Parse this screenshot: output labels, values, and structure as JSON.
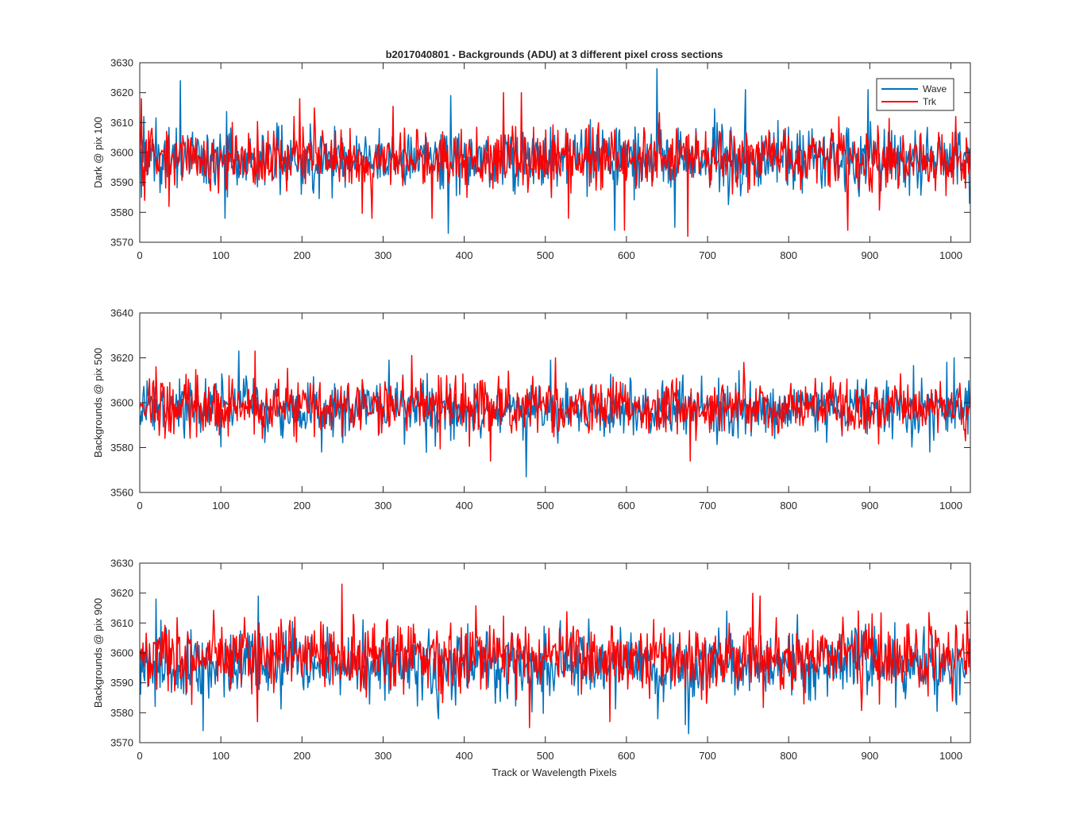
{
  "figure": {
    "background": "#ffffff"
  },
  "colors": {
    "wave": "#0072bd",
    "trk": "#ff0000",
    "axis": "#262626"
  },
  "chart_data": [
    {
      "type": "line",
      "title": "b2017040801 - Backgrounds (ADU) at 3 different pixel cross sections",
      "xlabel": "",
      "ylabel": "Dark @ pix 100",
      "xlim": [
        0,
        1024
      ],
      "ylim": [
        3570,
        3630
      ],
      "xticks": [
        "0",
        "100",
        "200",
        "300",
        "400",
        "500",
        "600",
        "700",
        "800",
        "900",
        "1000"
      ],
      "yticks": [
        "3570",
        "3580",
        "3590",
        "3600",
        "3610",
        "3620",
        "3630"
      ],
      "legend": {
        "position": "top-right",
        "entries": [
          "Wave",
          "Trk"
        ]
      },
      "grid": false,
      "series": [
        {
          "name": "Wave",
          "color": "#0072bd",
          "mean": 3598,
          "spread": 5.2,
          "spikes": [
            [
              2,
              3585
            ],
            [
              5,
              3612
            ],
            [
              50,
              3624
            ],
            [
              105,
              3578
            ],
            [
              380,
              3573
            ],
            [
              383,
              3619
            ],
            [
              555,
              3611
            ],
            [
              585,
              3574
            ],
            [
              637,
              3628
            ],
            [
              659,
              3575
            ],
            [
              711,
              3610
            ],
            [
              746,
              3621
            ],
            [
              897,
              3621
            ],
            [
              1022,
              3583
            ]
          ]
        },
        {
          "name": "Trk",
          "color": "#ff0000",
          "mean": 3598,
          "spread": 5.0,
          "spikes": [
            [
              2,
              3618
            ],
            [
              6,
              3584
            ],
            [
              36,
              3582
            ],
            [
              197,
              3618
            ],
            [
              286,
              3578
            ],
            [
              360,
              3578
            ],
            [
              448,
              3620
            ],
            [
              470,
              3620
            ],
            [
              528,
              3578
            ],
            [
              597,
              3574
            ],
            [
              675,
              3572
            ],
            [
              872,
              3574
            ],
            [
              1005,
              3612
            ]
          ]
        }
      ]
    },
    {
      "type": "line",
      "title": "",
      "xlabel": "",
      "ylabel": "Backgrounds @ pix 500",
      "xlim": [
        0,
        1024
      ],
      "ylim": [
        3560,
        3640
      ],
      "xticks": [
        "0",
        "100",
        "200",
        "300",
        "400",
        "500",
        "600",
        "700",
        "800",
        "900",
        "1000"
      ],
      "yticks": [
        "3560",
        "3580",
        "3600",
        "3620",
        "3640"
      ],
      "grid": false,
      "series": [
        {
          "name": "Wave",
          "color": "#0072bd",
          "mean": 3597,
          "spread": 6.0,
          "spikes": [
            [
              122,
              3623
            ],
            [
              224,
              3578
            ],
            [
              307,
              3619
            ],
            [
              476,
              3567
            ],
            [
              506,
              3619
            ],
            [
              994,
              3618
            ],
            [
              1003,
              3620
            ],
            [
              1020,
              3586
            ]
          ]
        },
        {
          "name": "Trk",
          "color": "#ff0000",
          "mean": 3598,
          "spread": 6.0,
          "spikes": [
            [
              20,
              3616
            ],
            [
              142,
              3623
            ],
            [
              335,
              3621
            ],
            [
              432,
              3574
            ],
            [
              512,
              3620
            ],
            [
              678,
              3574
            ],
            [
              1017,
              3583
            ]
          ]
        }
      ]
    },
    {
      "type": "line",
      "title": "",
      "xlabel": "Track or Wavelength Pixels",
      "ylabel": "Backgrounds @ pix 900",
      "xlim": [
        0,
        1024
      ],
      "ylim": [
        3570,
        3630
      ],
      "xticks": [
        "0",
        "100",
        "200",
        "300",
        "400",
        "500",
        "600",
        "700",
        "800",
        "900",
        "1000"
      ],
      "yticks": [
        "3570",
        "3580",
        "3590",
        "3600",
        "3610",
        "3620",
        "3630"
      ],
      "grid": false,
      "series": [
        {
          "name": "Wave",
          "color": "#0072bd",
          "mean": 3596,
          "spread": 6.0,
          "spikes": [
            [
              20,
              3618
            ],
            [
              78,
              3574
            ],
            [
              146,
              3619
            ],
            [
              368,
              3578
            ],
            [
              672,
              3576
            ],
            [
              676,
              3573
            ],
            [
              1010,
              3586
            ]
          ]
        },
        {
          "name": "Trk",
          "color": "#ff0000",
          "mean": 3599,
          "spread": 6.0,
          "spikes": [
            [
              145,
              3577
            ],
            [
              249,
              3623
            ],
            [
              480,
              3575
            ],
            [
              579,
              3577
            ],
            [
              764,
              3619
            ],
            [
              1019,
              3614
            ]
          ]
        }
      ]
    }
  ]
}
